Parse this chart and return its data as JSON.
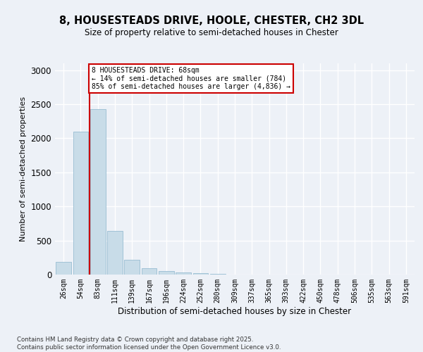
{
  "title_line1": "8, HOUSESTEADS DRIVE, HOOLE, CHESTER, CH2 3DL",
  "title_line2": "Size of property relative to semi-detached houses in Chester",
  "xlabel": "Distribution of semi-detached houses by size in Chester",
  "ylabel": "Number of semi-detached properties",
  "bar_color": "#c8dce8",
  "bar_edge_color": "#8ab4cc",
  "vline_color": "#cc0000",
  "annotation_text": "8 HOUSESTEADS DRIVE: 68sqm\n← 14% of semi-detached houses are smaller (784)\n85% of semi-detached houses are larger (4,836) →",
  "categories": [
    "26sqm",
    "54sqm",
    "83sqm",
    "111sqm",
    "139sqm",
    "167sqm",
    "196sqm",
    "224sqm",
    "252sqm",
    "280sqm",
    "309sqm",
    "337sqm",
    "365sqm",
    "393sqm",
    "422sqm",
    "450sqm",
    "478sqm",
    "506sqm",
    "535sqm",
    "563sqm",
    "591sqm"
  ],
  "values": [
    185,
    2100,
    2430,
    640,
    220,
    90,
    50,
    35,
    22,
    14,
    0,
    0,
    0,
    0,
    0,
    0,
    0,
    0,
    0,
    0,
    0
  ],
  "ylim": [
    0,
    3100
  ],
  "yticks": [
    0,
    500,
    1000,
    1500,
    2000,
    2500,
    3000
  ],
  "vline_bar_index": 2,
  "background_color": "#edf1f7",
  "footer_line1": "Contains HM Land Registry data © Crown copyright and database right 2025.",
  "footer_line2": "Contains public sector information licensed under the Open Government Licence v3.0."
}
